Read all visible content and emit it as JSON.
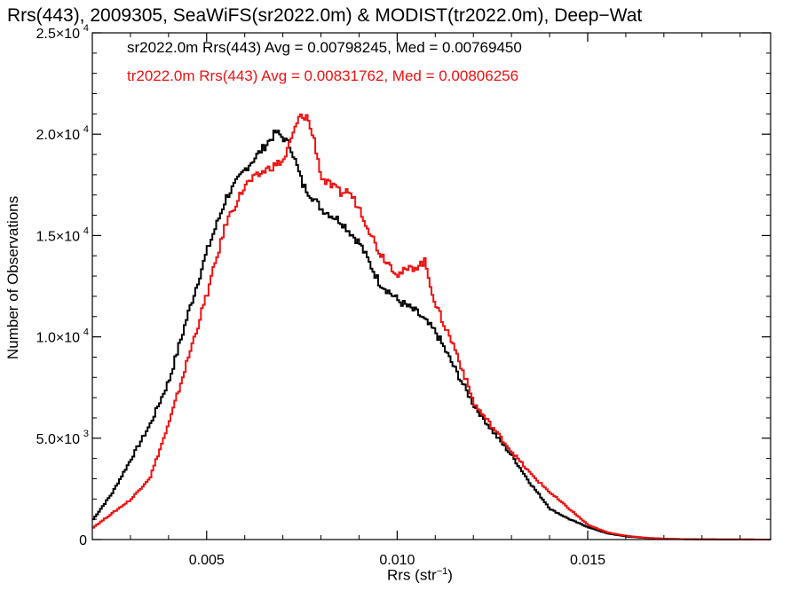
{
  "chart_data": {
    "type": "line",
    "title": "Rrs(443), 2009305, SeaWiFS(sr2022.0m) & MODIST(tr2022.0m), Deep−Wat",
    "xlabel": "Rrs (str",
    "xlabel_sup": "−1",
    "xlabel_end": ")",
    "ylabel": "Number of Observations",
    "xlim": [
      0.002,
      0.0198
    ],
    "ylim": [
      0,
      25000
    ],
    "xticks": [
      {
        "value": 0.005,
        "label": "0.005"
      },
      {
        "value": 0.01,
        "label": "0.010"
      },
      {
        "value": 0.015,
        "label": "0.015"
      }
    ],
    "yticks": [
      {
        "value": 0,
        "mant": "0",
        "exp": ""
      },
      {
        "value": 5000,
        "mant": "5.0×10",
        "exp": "3"
      },
      {
        "value": 10000,
        "mant": "1.0×10",
        "exp": "4"
      },
      {
        "value": 15000,
        "mant": "1.5×10",
        "exp": "4"
      },
      {
        "value": 20000,
        "mant": "2.0×10",
        "exp": "4"
      },
      {
        "value": 25000,
        "mant": "2.5×10",
        "exp": "4"
      }
    ],
    "grid": false,
    "annotations": [
      {
        "text": "sr2022.0m Rrs(443) Avg = 0.00798245, Med = 0.00769450",
        "color": "#000000"
      },
      {
        "text": "tr2022.0m Rrs(443) Avg = 0.00831762, Med = 0.00806256",
        "color": "#ee1111"
      }
    ],
    "series": [
      {
        "color": "#000000",
        "x": [
          0.002,
          0.0025,
          0.003,
          0.0035,
          0.004,
          0.0045,
          0.005,
          0.0055,
          0.006,
          0.0065,
          0.0068,
          0.007,
          0.0072,
          0.0075,
          0.008,
          0.0085,
          0.009,
          0.0095,
          0.01,
          0.0105,
          0.011,
          0.0115,
          0.012,
          0.0125,
          0.013,
          0.0135,
          0.014,
          0.0145,
          0.015,
          0.0155,
          0.016,
          0.0165,
          0.017,
          0.0175,
          0.018,
          0.019,
          0.0198
        ],
        "y": [
          1000,
          2300,
          4000,
          5700,
          7900,
          11200,
          14300,
          16900,
          18300,
          19400,
          20100,
          19800,
          19300,
          17500,
          16300,
          15700,
          14600,
          12700,
          11800,
          11200,
          10200,
          8400,
          6600,
          5300,
          4100,
          2700,
          1500,
          1000,
          600,
          300,
          150,
          80,
          40,
          20,
          10,
          5,
          0
        ]
      },
      {
        "color": "#ee1111",
        "x": [
          0.002,
          0.0025,
          0.003,
          0.0035,
          0.004,
          0.0045,
          0.005,
          0.0055,
          0.006,
          0.0065,
          0.007,
          0.0074,
          0.0076,
          0.0078,
          0.008,
          0.0085,
          0.0087,
          0.009,
          0.0095,
          0.01,
          0.0105,
          0.0107,
          0.011,
          0.0115,
          0.012,
          0.0125,
          0.013,
          0.0135,
          0.014,
          0.0145,
          0.015,
          0.0155,
          0.016,
          0.0165,
          0.017,
          0.0175,
          0.018,
          0.019,
          0.0198
        ],
        "y": [
          600,
          1300,
          2000,
          3100,
          5800,
          9000,
          12200,
          15700,
          17500,
          18200,
          18700,
          20800,
          20900,
          19700,
          17800,
          17100,
          17200,
          16300,
          14200,
          13100,
          13500,
          13700,
          11500,
          9400,
          6700,
          5500,
          4300,
          3200,
          2300,
          1500,
          700,
          350,
          180,
          90,
          40,
          20,
          10,
          5,
          0
        ]
      }
    ]
  }
}
